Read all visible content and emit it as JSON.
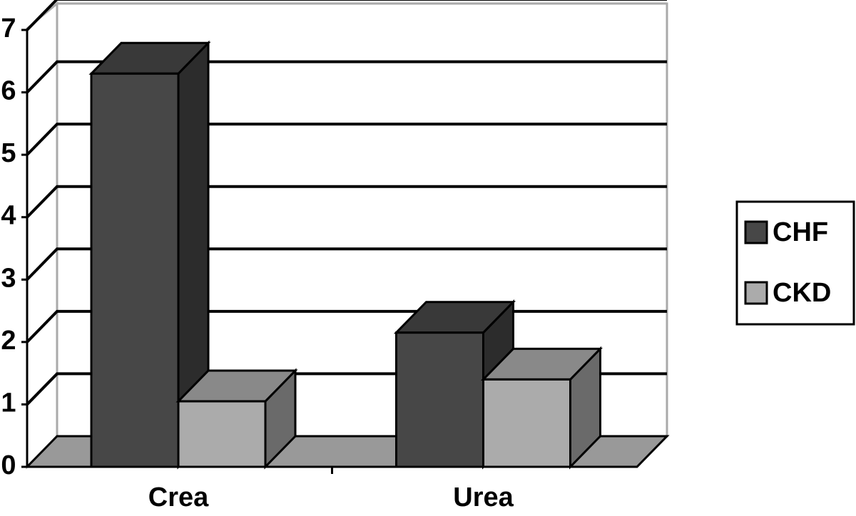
{
  "chart_data": {
    "type": "bar3d",
    "categories": [
      "Crea",
      "Urea"
    ],
    "series": [
      {
        "name": "CHF",
        "color": "#474747",
        "values": [
          6.3,
          2.15
        ]
      },
      {
        "name": "CKD",
        "color": "#ababab",
        "values": [
          1.05,
          1.4
        ]
      }
    ],
    "ylim": [
      0,
      7
    ],
    "yticks": [
      0,
      1,
      2,
      3,
      4,
      5,
      6,
      7
    ],
    "grid": true,
    "legend": "right"
  }
}
